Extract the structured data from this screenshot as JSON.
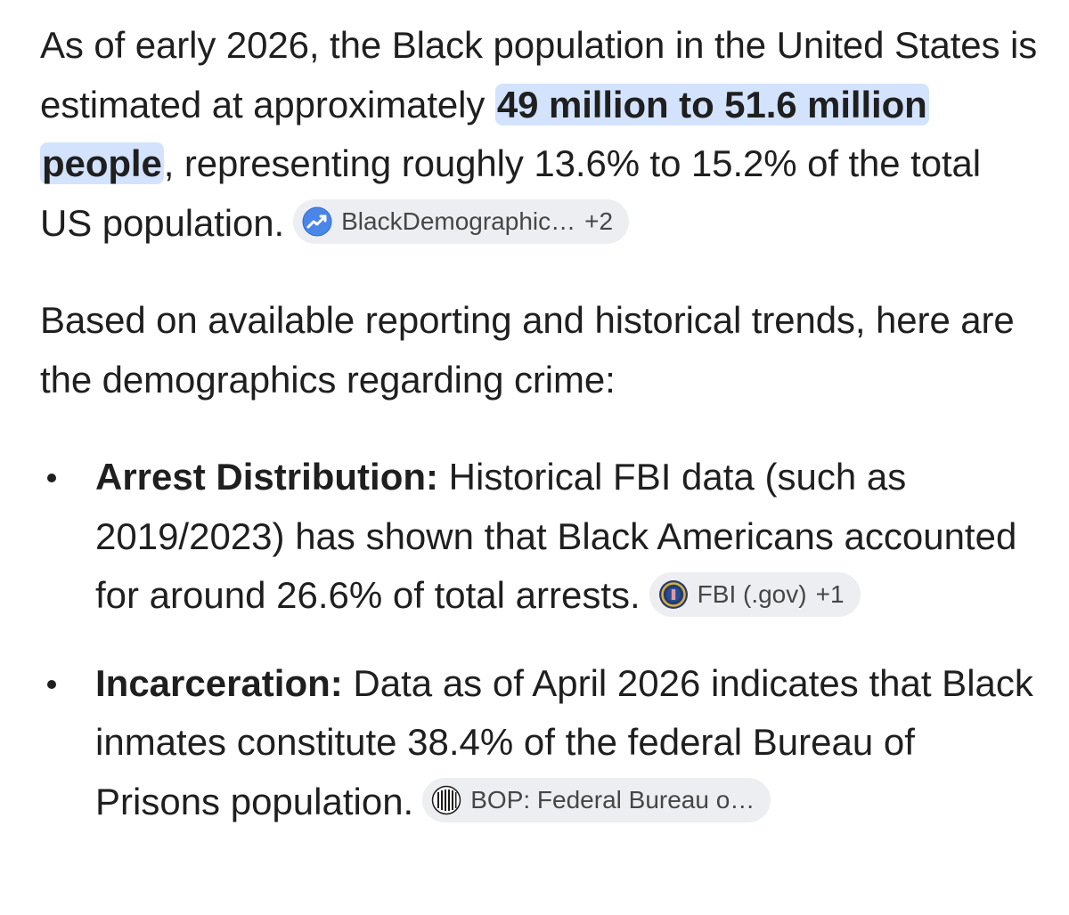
{
  "paragraphs": [
    {
      "text_before": "As of early 2026, the Black population in the United States is estimated at approximately ",
      "highlight": "49 million to 51.6 million people",
      "text_after": ", representing roughly 13.6% to 15.2% of the total US population.",
      "source_chip": {
        "label": "BlackDemographic…",
        "extra": "+2",
        "icon": "trend-chart-icon",
        "icon_color": "#4a86e8"
      }
    },
    {
      "text": "Based on available reporting and historical trends, here are the demographics regarding crime:"
    }
  ],
  "bullets": [
    {
      "heading": "Arrest Distribution:",
      "text": " Historical FBI data (such as 2019/2023) has shown that Black Americans accounted for around 26.6% of total arrests.",
      "source_chip": {
        "label": "FBI (.gov)",
        "extra": "+1",
        "icon": "fbi-seal-icon",
        "icon_color": "#2b3a67"
      }
    },
    {
      "heading": "Incarceration:",
      "text": " Data as of April 2026 indicates that Black inmates constitute 38.4% of the federal Bureau of Prisons population.",
      "source_chip": {
        "label": "BOP: Federal Bureau o…",
        "extra": "",
        "icon": "bop-logo-icon",
        "icon_color": "#1a1a1a"
      }
    }
  ],
  "colors": {
    "highlight_bg": "#d3e3fd",
    "chip_bg": "#eceef1",
    "text": "#1f1f1f",
    "chip_text": "#444746"
  }
}
